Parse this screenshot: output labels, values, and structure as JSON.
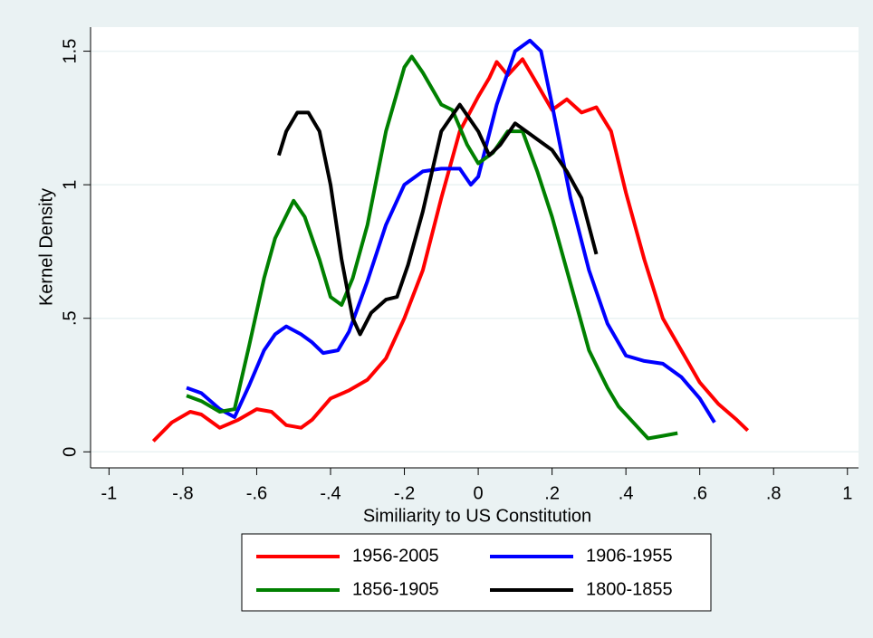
{
  "chart_data": {
    "type": "line",
    "xlabel": "Similiarity to US Constitution",
    "ylabel": "Kernel Density",
    "xlim": [
      -1.05,
      1.03
    ],
    "ylim": [
      -0.06,
      1.59
    ],
    "xticks": [
      -1,
      {
        "value": -0.8,
        "label": "-.8"
      },
      {
        "value": -0.6,
        "label": "-.6"
      },
      {
        "value": -0.4,
        "label": "-.4"
      },
      {
        "value": -0.2,
        "label": "-.2"
      },
      0,
      {
        "value": 0.2,
        "label": ".2"
      },
      {
        "value": 0.4,
        "label": ".4"
      },
      {
        "value": 0.6,
        "label": ".6"
      },
      {
        "value": 0.8,
        "label": ".8"
      },
      1
    ],
    "yticks": [
      0,
      {
        "value": 0.5,
        "label": ".5"
      },
      1,
      1.5
    ],
    "grid": true,
    "legend": "bottom",
    "series": [
      {
        "name": "1956-2005",
        "color": "#ff0000",
        "x": [
          -0.88,
          -0.83,
          -0.78,
          -0.75,
          -0.7,
          -0.65,
          -0.6,
          -0.56,
          -0.52,
          -0.48,
          -0.45,
          -0.4,
          -0.35,
          -0.3,
          -0.25,
          -0.2,
          -0.15,
          -0.1,
          -0.05,
          0,
          0.03,
          0.05,
          0.08,
          0.12,
          0.15,
          0.2,
          0.24,
          0.28,
          0.32,
          0.36,
          0.4,
          0.45,
          0.5,
          0.55,
          0.6,
          0.65,
          0.7,
          0.73
        ],
        "values": [
          0.04,
          0.11,
          0.15,
          0.14,
          0.09,
          0.12,
          0.16,
          0.15,
          0.1,
          0.09,
          0.12,
          0.2,
          0.23,
          0.27,
          0.35,
          0.5,
          0.68,
          0.95,
          1.2,
          1.33,
          1.4,
          1.46,
          1.41,
          1.47,
          1.4,
          1.28,
          1.32,
          1.27,
          1.29,
          1.2,
          0.97,
          0.72,
          0.5,
          0.38,
          0.26,
          0.18,
          0.12,
          0.08
        ]
      },
      {
        "name": "1906-1955",
        "color": "#0000ff",
        "x": [
          -0.79,
          -0.75,
          -0.7,
          -0.66,
          -0.62,
          -0.58,
          -0.55,
          -0.52,
          -0.48,
          -0.45,
          -0.42,
          -0.38,
          -0.35,
          -0.3,
          -0.25,
          -0.2,
          -0.15,
          -0.1,
          -0.05,
          -0.02,
          0,
          0.05,
          0.1,
          0.14,
          0.17,
          0.2,
          0.25,
          0.3,
          0.35,
          0.4,
          0.45,
          0.5,
          0.55,
          0.6,
          0.64
        ],
        "values": [
          0.24,
          0.22,
          0.16,
          0.13,
          0.25,
          0.38,
          0.44,
          0.47,
          0.44,
          0.41,
          0.37,
          0.38,
          0.45,
          0.64,
          0.85,
          1.0,
          1.05,
          1.06,
          1.06,
          1.0,
          1.03,
          1.3,
          1.5,
          1.54,
          1.5,
          1.3,
          0.95,
          0.68,
          0.48,
          0.36,
          0.34,
          0.33,
          0.28,
          0.2,
          0.11
        ]
      },
      {
        "name": "1856-1905",
        "color": "#008000",
        "x": [
          -0.79,
          -0.75,
          -0.7,
          -0.66,
          -0.62,
          -0.58,
          -0.55,
          -0.5,
          -0.47,
          -0.43,
          -0.4,
          -0.37,
          -0.34,
          -0.3,
          -0.25,
          -0.2,
          -0.18,
          -0.15,
          -0.1,
          -0.07,
          -0.03,
          0,
          0.04,
          0.08,
          0.12,
          0.16,
          0.2,
          0.25,
          0.3,
          0.35,
          0.38,
          0.42,
          0.46,
          0.5,
          0.54
        ],
        "values": [
          0.21,
          0.19,
          0.15,
          0.16,
          0.4,
          0.65,
          0.8,
          0.94,
          0.88,
          0.72,
          0.58,
          0.55,
          0.65,
          0.85,
          1.2,
          1.44,
          1.48,
          1.42,
          1.3,
          1.28,
          1.15,
          1.08,
          1.12,
          1.2,
          1.2,
          1.05,
          0.88,
          0.63,
          0.38,
          0.24,
          0.17,
          0.11,
          0.05,
          0.06,
          0.07
        ]
      },
      {
        "name": "1800-1855",
        "color": "#000000",
        "x": [
          -0.54,
          -0.52,
          -0.49,
          -0.46,
          -0.43,
          -0.4,
          -0.37,
          -0.34,
          -0.32,
          -0.29,
          -0.25,
          -0.22,
          -0.19,
          -0.15,
          -0.1,
          -0.05,
          0,
          0.03,
          0.06,
          0.1,
          0.13,
          0.16,
          0.2,
          0.24,
          0.28,
          0.32
        ],
        "values": [
          1.11,
          1.2,
          1.27,
          1.27,
          1.2,
          1.0,
          0.72,
          0.5,
          0.44,
          0.52,
          0.57,
          0.58,
          0.7,
          0.9,
          1.2,
          1.3,
          1.2,
          1.11,
          1.15,
          1.23,
          1.2,
          1.17,
          1.13,
          1.05,
          0.95,
          0.74
        ]
      }
    ]
  }
}
